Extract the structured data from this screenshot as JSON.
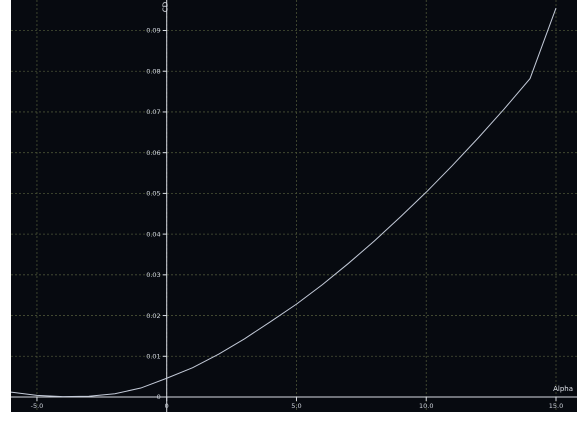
{
  "chart_data": {
    "type": "line",
    "xlabel": "Alpha",
    "ylabel": "CD",
    "xlim": [
      -6.0,
      15.0
    ],
    "ylim": [
      0.0,
      0.097
    ],
    "x_ticks": [
      "-5.0",
      "0",
      "5.0",
      "10.0",
      "15.0"
    ],
    "y_ticks": [
      "0",
      "0.01",
      "0.02",
      "0.03",
      "0.04",
      "0.05",
      "0.06",
      "0.07",
      "0.08",
      "0.09"
    ],
    "grid": true,
    "colors": {
      "background": "#070a10",
      "grid": "#4a5236",
      "axis": "#d7dbe2",
      "line": "#c3cad8"
    },
    "series": [
      {
        "x": [
          -6.0,
          -5.5,
          -5.0,
          -4.0,
          -3.0,
          -2.0,
          -1.0,
          0.0,
          1.0,
          2.0,
          3.0,
          4.0,
          5.0,
          6.0,
          7.0,
          8.0,
          9.0,
          10.0,
          11.0,
          12.0,
          13.0,
          14.0,
          15.0
        ],
        "y": [
          0.0012,
          0.0008,
          0.0004,
          0.0001,
          0.0002,
          0.0008,
          0.0022,
          0.0046,
          0.0072,
          0.0105,
          0.0143,
          0.0185,
          0.0228,
          0.0276,
          0.0328,
          0.0383,
          0.0442,
          0.0503,
          0.0568,
          0.0636,
          0.0707,
          0.0782,
          0.0955
        ]
      }
    ]
  }
}
